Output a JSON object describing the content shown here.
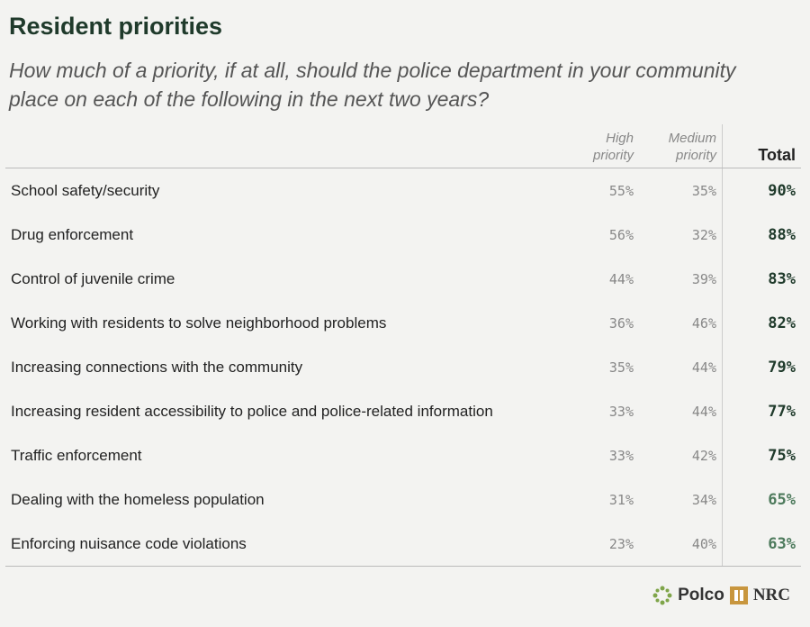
{
  "header": {
    "title": "Resident priorities",
    "subtitle": "How much of a priority, if at all, should the police department in your community place on each of the following in the next two years?"
  },
  "table": {
    "columns": [
      "High priority",
      "Medium priority",
      "Total"
    ],
    "rows": [
      [
        "School safety/security",
        "55%",
        "35%",
        "90%"
      ],
      [
        "Drug enforcement",
        "56%",
        "32%",
        "88%"
      ],
      [
        "Control of juvenile crime",
        "44%",
        "39%",
        "83%"
      ],
      [
        "Working with residents to solve neighborhood problems",
        "36%",
        "46%",
        "82%"
      ],
      [
        "Increasing connections with the community",
        "35%",
        "44%",
        "79%"
      ],
      [
        "Increasing resident accessibility to police and police-related information",
        "33%",
        "44%",
        "77%"
      ],
      [
        "Traffic enforcement",
        "33%",
        "42%",
        "75%"
      ],
      [
        "Dealing with the homeless population",
        "31%",
        "34%",
        "65%"
      ],
      [
        "Enforcing nuisance code violations",
        "23%",
        "40%",
        "63%"
      ]
    ]
  },
  "footer": {
    "brand_1": "Polco",
    "brand_2": "NRC"
  }
}
